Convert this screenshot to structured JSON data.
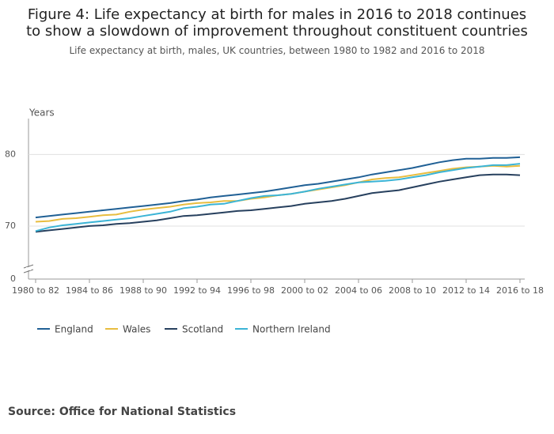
{
  "chart_data": {
    "type": "line",
    "title": "Figure 4: Life expectancy at birth for males in 2016 to 2018 continues to show a slowdown of improvement throughout constituent countries",
    "subtitle": "Life expectancy at birth, males, UK countries, between 1980 to 1982 and 2016 to 2018",
    "y_label": "Years",
    "categories": [
      "1980 to 82",
      null,
      null,
      null,
      "1984 to 86",
      null,
      null,
      null,
      "1988 to 90",
      null,
      null,
      null,
      "1992 to 94",
      null,
      null,
      null,
      "1996 to 98",
      null,
      null,
      null,
      "2000 to 02",
      null,
      null,
      null,
      "2004 to 06",
      null,
      null,
      null,
      "2008 to 10",
      null,
      null,
      null,
      "2012 to 14",
      null,
      null,
      null,
      "2016 to 18"
    ],
    "series": [
      {
        "name": "England",
        "color": "#206095",
        "values": [
          71.2,
          71.4,
          71.6,
          71.8,
          72.0,
          72.2,
          72.4,
          72.6,
          72.8,
          73.0,
          73.2,
          73.5,
          73.7,
          74.0,
          74.2,
          74.4,
          74.6,
          74.8,
          75.1,
          75.4,
          75.7,
          75.9,
          76.2,
          76.5,
          76.8,
          77.2,
          77.5,
          77.8,
          78.1,
          78.5,
          78.9,
          79.2,
          79.4,
          79.4,
          79.5,
          79.5,
          79.6
        ]
      },
      {
        "name": "Wales",
        "color": "#e8bd3f",
        "values": [
          70.6,
          70.7,
          71.0,
          71.1,
          71.3,
          71.5,
          71.6,
          72.0,
          72.3,
          72.5,
          72.7,
          73.0,
          73.2,
          73.3,
          73.5,
          73.5,
          73.8,
          74.0,
          74.3,
          74.5,
          74.8,
          75.1,
          75.4,
          75.7,
          76.1,
          76.5,
          76.7,
          76.8,
          77.1,
          77.4,
          77.7,
          78.0,
          78.2,
          78.3,
          78.4,
          78.3,
          78.4
        ]
      },
      {
        "name": "Scotland",
        "color": "#27405e",
        "values": [
          69.2,
          69.4,
          69.6,
          69.8,
          70.0,
          70.1,
          70.3,
          70.4,
          70.6,
          70.8,
          71.1,
          71.4,
          71.5,
          71.7,
          71.9,
          72.1,
          72.2,
          72.4,
          72.6,
          72.8,
          73.1,
          73.3,
          73.5,
          73.8,
          74.2,
          74.6,
          74.8,
          75.0,
          75.4,
          75.8,
          76.2,
          76.5,
          76.8,
          77.1,
          77.2,
          77.2,
          77.1
        ]
      },
      {
        "name": "Northern Ireland",
        "color": "#3bb4d6",
        "values": [
          69.3,
          69.8,
          70.1,
          70.3,
          70.5,
          70.7,
          70.9,
          71.1,
          71.4,
          71.7,
          72.0,
          72.5,
          72.7,
          73.0,
          73.1,
          73.5,
          73.9,
          74.2,
          74.3,
          74.5,
          74.8,
          75.2,
          75.5,
          75.8,
          76.1,
          76.2,
          76.3,
          76.5,
          76.8,
          77.1,
          77.5,
          77.8,
          78.1,
          78.3,
          78.5,
          78.5,
          78.7
        ]
      }
    ],
    "ylim": [
      0,
      85
    ],
    "axis_break": [
      0,
      62.6
    ],
    "yticks": [
      0,
      70,
      80
    ],
    "grid": true,
    "legend": "bottom"
  },
  "source": "Source: Office for National Statistics"
}
